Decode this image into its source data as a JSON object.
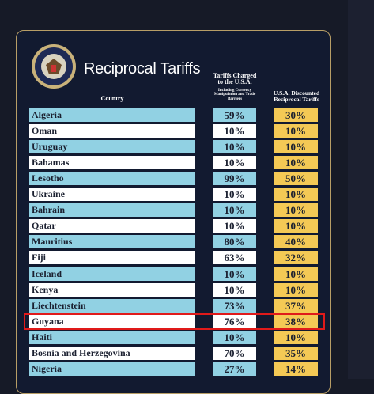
{
  "header": {
    "title": "Reciprocal Tariffs",
    "columns": [
      "Country",
      "Tariffs Charged to the U.S.A.",
      "Including Currency Manipulation and Trade Barriers",
      "U.S.A. Discounted Reciprocal Tariffs"
    ]
  },
  "table": {
    "rows": [
      [
        "Algeria",
        "59%",
        "30%"
      ],
      [
        "Oman",
        "10%",
        "10%"
      ],
      [
        "Uruguay",
        "10%",
        "10%"
      ],
      [
        "Bahamas",
        "10%",
        "10%"
      ],
      [
        "Lesotho",
        "99%",
        "50%"
      ],
      [
        "Ukraine",
        "10%",
        "10%"
      ],
      [
        "Bahrain",
        "10%",
        "10%"
      ],
      [
        "Qatar",
        "10%",
        "10%"
      ],
      [
        "Mauritius",
        "80%",
        "40%"
      ],
      [
        "Fiji",
        "63%",
        "32%"
      ],
      [
        "Iceland",
        "10%",
        "10%"
      ],
      [
        "Kenya",
        "10%",
        "10%"
      ],
      [
        "Liechtenstein",
        "73%",
        "37%"
      ],
      [
        "Guyana",
        "76%",
        "38%"
      ],
      [
        "Haiti",
        "10%",
        "10%"
      ],
      [
        "Bosnia and Herzegovina",
        "70%",
        "35%"
      ],
      [
        "Nigeria",
        "27%",
        "14%"
      ]
    ]
  }
}
